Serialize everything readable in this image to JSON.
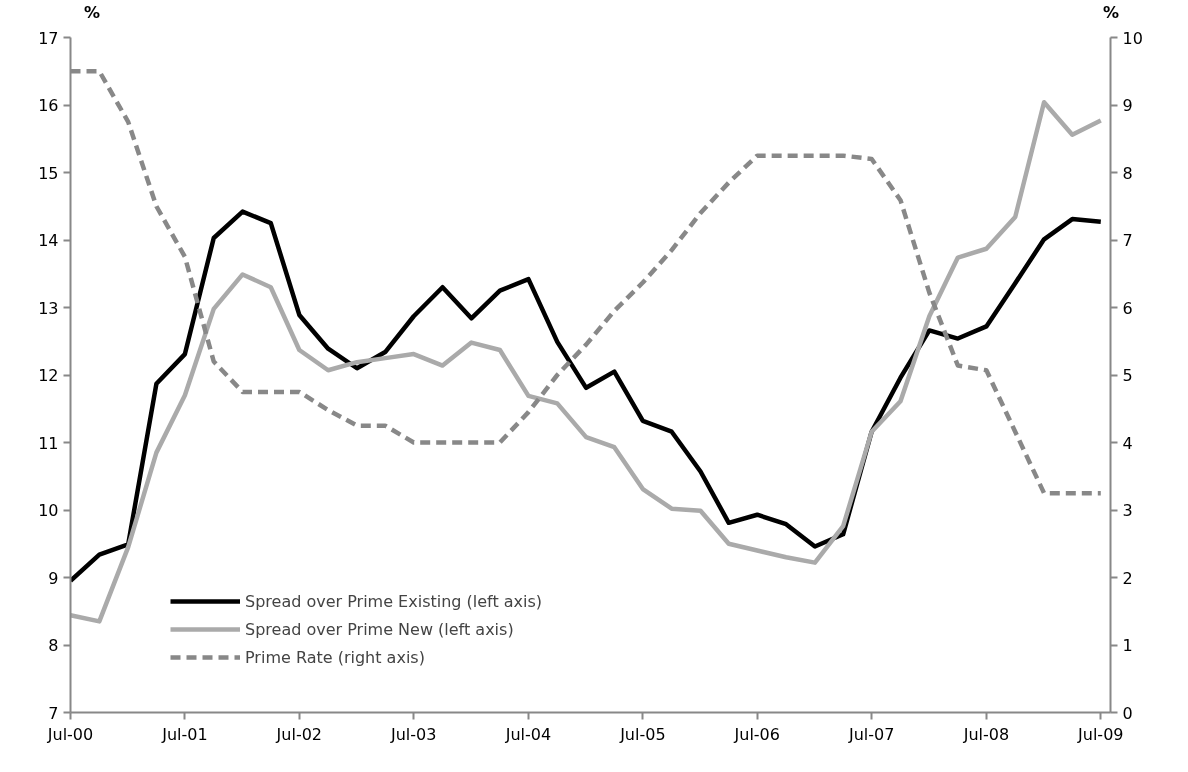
{
  "chart_data": {
    "type": "line",
    "ylabel": "%",
    "y2label": "%",
    "x": [
      "2000-07",
      "2000-10",
      "2001-01",
      "2001-04",
      "2001-07",
      "2001-10",
      "2002-01",
      "2002-04",
      "2002-07",
      "2002-10",
      "2003-01",
      "2003-04",
      "2003-07",
      "2003-10",
      "2004-01",
      "2004-04",
      "2004-07",
      "2004-10",
      "2005-01",
      "2005-04",
      "2005-07",
      "2005-10",
      "2006-01",
      "2006-04",
      "2006-07",
      "2006-10",
      "2007-01",
      "2007-04",
      "2007-07",
      "2007-10",
      "2008-01",
      "2008-04",
      "2008-07",
      "2008-10",
      "2009-01",
      "2009-04",
      "2009-07"
    ],
    "series": [
      {
        "name": "Spread over Prime Existing (left axis)",
        "color": "#000000",
        "line_style": "solid",
        "values": [
          8.95,
          9.34,
          9.49,
          11.87,
          12.31,
          14.03,
          14.42,
          14.25,
          12.89,
          12.39,
          12.1,
          12.34,
          12.87,
          13.3,
          12.84,
          13.25,
          13.42,
          12.49,
          11.81,
          12.05,
          11.32,
          11.16,
          10.57,
          9.81,
          9.93,
          9.79,
          9.46,
          9.64,
          11.16,
          11.96,
          12.66,
          12.54,
          12.72,
          13.36,
          14.01,
          14.31,
          14.27
        ]
      },
      {
        "name": "Spread over Prime New (left axis)",
        "color": "#aaaaaa",
        "line_style": "solid",
        "values": [
          8.44,
          8.35,
          9.45,
          10.85,
          11.7,
          12.98,
          13.49,
          13.3,
          12.37,
          12.07,
          12.19,
          12.25,
          12.31,
          12.14,
          12.48,
          12.37,
          11.69,
          11.58,
          11.08,
          10.93,
          10.31,
          10.02,
          9.99,
          9.5,
          9.4,
          9.3,
          9.22,
          9.76,
          11.16,
          11.61,
          12.87,
          13.74,
          13.87,
          14.34,
          16.04,
          15.56,
          15.77
        ]
      },
      {
        "name": "Prime Rate (right axis)",
        "color": "#888888",
        "line_style": "dashed",
        "axis": "y2",
        "values": [
          9.5,
          9.5,
          8.75,
          7.5,
          6.75,
          5.2,
          4.75,
          4.75,
          4.75,
          4.48,
          4.25,
          4.25,
          4.0,
          4.0,
          4.0,
          4.0,
          4.45,
          5.0,
          5.45,
          5.95,
          6.37,
          6.85,
          7.4,
          7.85,
          8.25,
          8.25,
          8.25,
          8.25,
          8.2,
          7.59,
          6.22,
          5.14,
          5.07,
          4.16,
          3.25,
          3.25,
          3.25
        ]
      }
    ],
    "xlim": [
      "2000-07",
      "2009-08"
    ],
    "xticks": [
      {
        "value": "2000-07",
        "label": "Jul-00"
      },
      {
        "value": "2001-07",
        "label": "Jul-01"
      },
      {
        "value": "2002-07",
        "label": "Jul-02"
      },
      {
        "value": "2003-07",
        "label": "Jul-03"
      },
      {
        "value": "2004-07",
        "label": "Jul-04"
      },
      {
        "value": "2005-07",
        "label": "Jul-05"
      },
      {
        "value": "2006-07",
        "label": "Jul-06"
      },
      {
        "value": "2007-07",
        "label": "Jul-07"
      },
      {
        "value": "2008-07",
        "label": "Jul-08"
      },
      {
        "value": "2009-07",
        "label": "Jul-09"
      }
    ],
    "ylim": [
      7,
      17
    ],
    "yticks": [
      7,
      8,
      9,
      10,
      11,
      12,
      13,
      14,
      15,
      16,
      17
    ],
    "y2lim": [
      0,
      10
    ],
    "y2ticks": [
      0,
      1,
      2,
      3,
      4,
      5,
      6,
      7,
      8,
      9,
      10
    ],
    "grid": false,
    "legend": "bottom left",
    "marker": "none"
  }
}
